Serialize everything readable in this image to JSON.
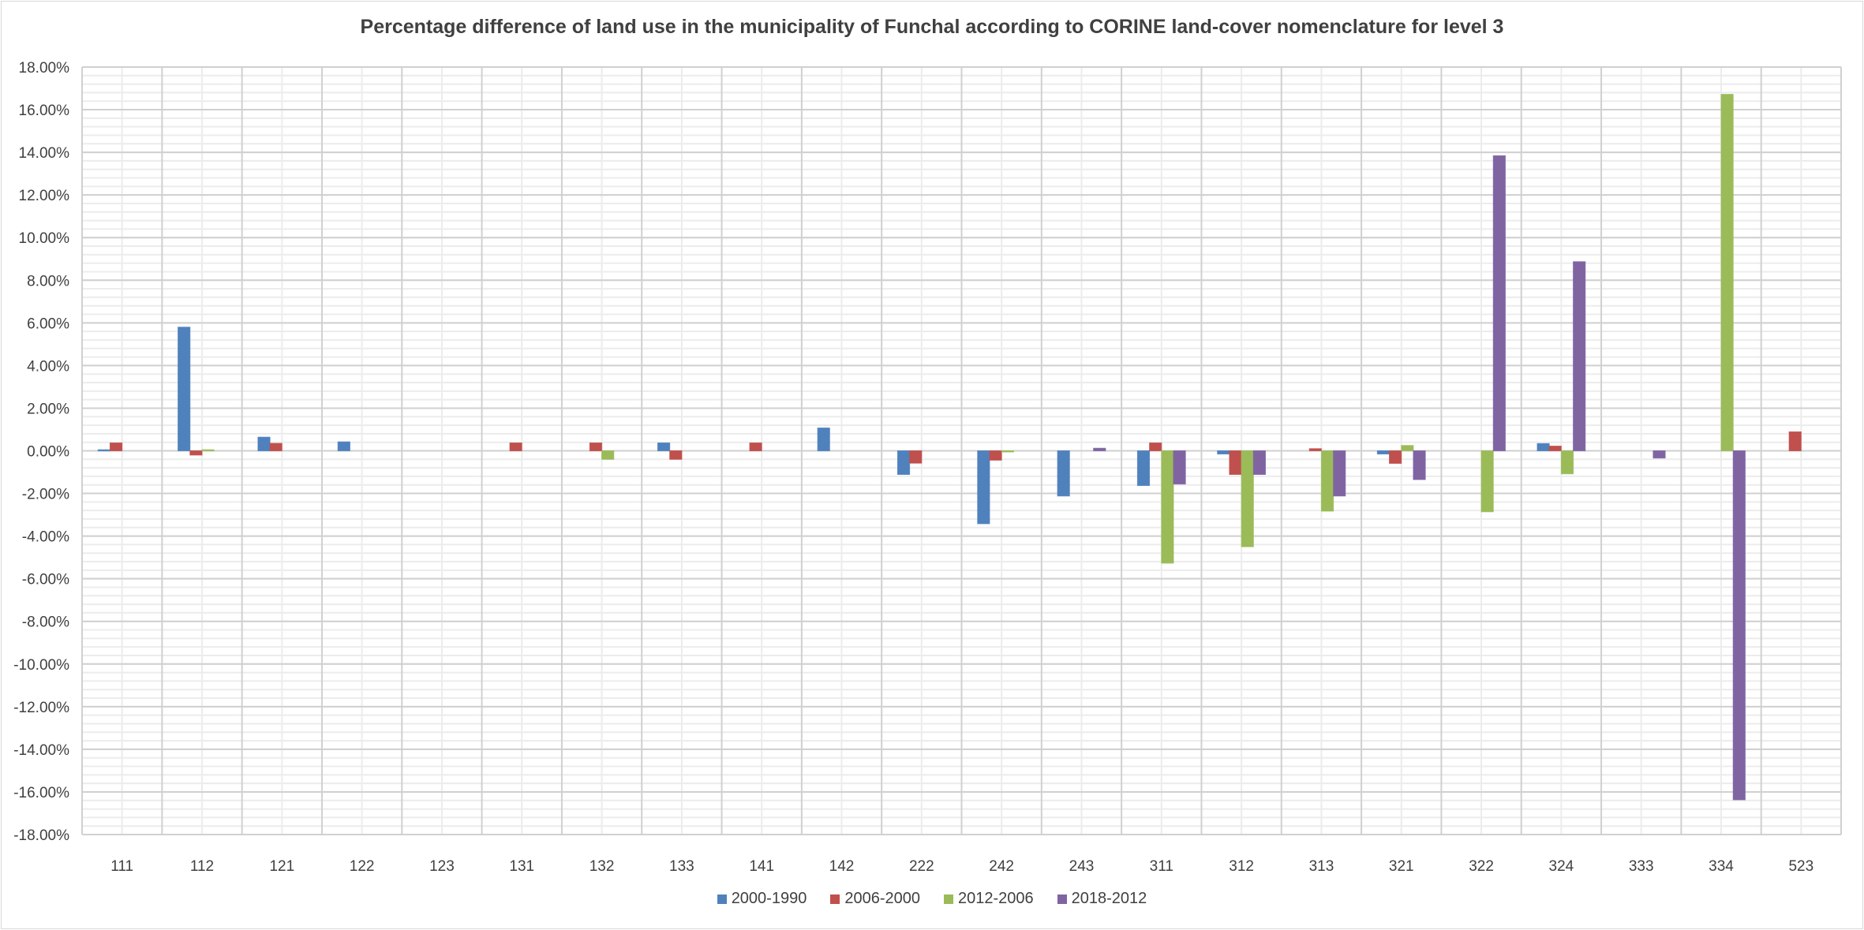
{
  "chart_data": {
    "type": "bar",
    "title": "Percentage difference of land use in the municipality of Funchal according to CORINE land-cover nomenclature for level 3",
    "xlabel": "",
    "ylabel": "",
    "ylim": [
      -18,
      18
    ],
    "y_major_step": 2,
    "y_minor_step": 0.4,
    "y_tick_format": "percent_2dp",
    "grid": true,
    "legend_position": "bottom",
    "categories": [
      "111",
      "112",
      "121",
      "122",
      "123",
      "131",
      "132",
      "133",
      "141",
      "142",
      "222",
      "242",
      "243",
      "311",
      "312",
      "313",
      "321",
      "322",
      "324",
      "333",
      "334",
      "523"
    ],
    "y_ticks": [
      "18.00%",
      "16.00%",
      "14.00%",
      "12.00%",
      "10.00%",
      "8.00%",
      "6.00%",
      "4.00%",
      "2.00%",
      "0.00%",
      "-2.00%",
      "-4.00%",
      "-6.00%",
      "-8.00%",
      "-10.00%",
      "-12.00%",
      "-14.00%",
      "-16.00%",
      "-18.00%"
    ],
    "series": [
      {
        "name": "2000-1990",
        "color": "#4F81BD",
        "values": [
          0.05,
          5.8,
          0.64,
          0.42,
          0,
          0,
          0,
          0.37,
          0,
          1.07,
          -1.11,
          -3.42,
          -2.12,
          -1.63,
          -0.15,
          0,
          -0.15,
          0,
          0.34,
          0,
          0,
          0
        ]
      },
      {
        "name": "2006-2000",
        "color": "#C0504D",
        "values": [
          0.37,
          -0.2,
          0.35,
          0,
          0,
          0.37,
          0.37,
          -0.4,
          0.37,
          0,
          -0.58,
          -0.44,
          0,
          0.37,
          -1.11,
          0.1,
          -0.59,
          0,
          0.22,
          0,
          0,
          0.89
        ]
      },
      {
        "name": "2012-2006",
        "color": "#9BBB59",
        "values": [
          0,
          0.05,
          0,
          0,
          0,
          0,
          -0.4,
          0,
          0,
          0,
          0,
          -0.05,
          0,
          -5.27,
          -4.5,
          -2.83,
          0.25,
          -2.86,
          -1.08,
          0,
          16.72,
          0
        ]
      },
      {
        "name": "2018-2012",
        "color": "#8064A2",
        "values": [
          0,
          0,
          0,
          0,
          0,
          0,
          0,
          0,
          0,
          0,
          0,
          0,
          0.12,
          -1.56,
          -1.11,
          -2.12,
          -1.35,
          13.84,
          8.87,
          -0.34,
          -16.37,
          0
        ]
      }
    ]
  }
}
